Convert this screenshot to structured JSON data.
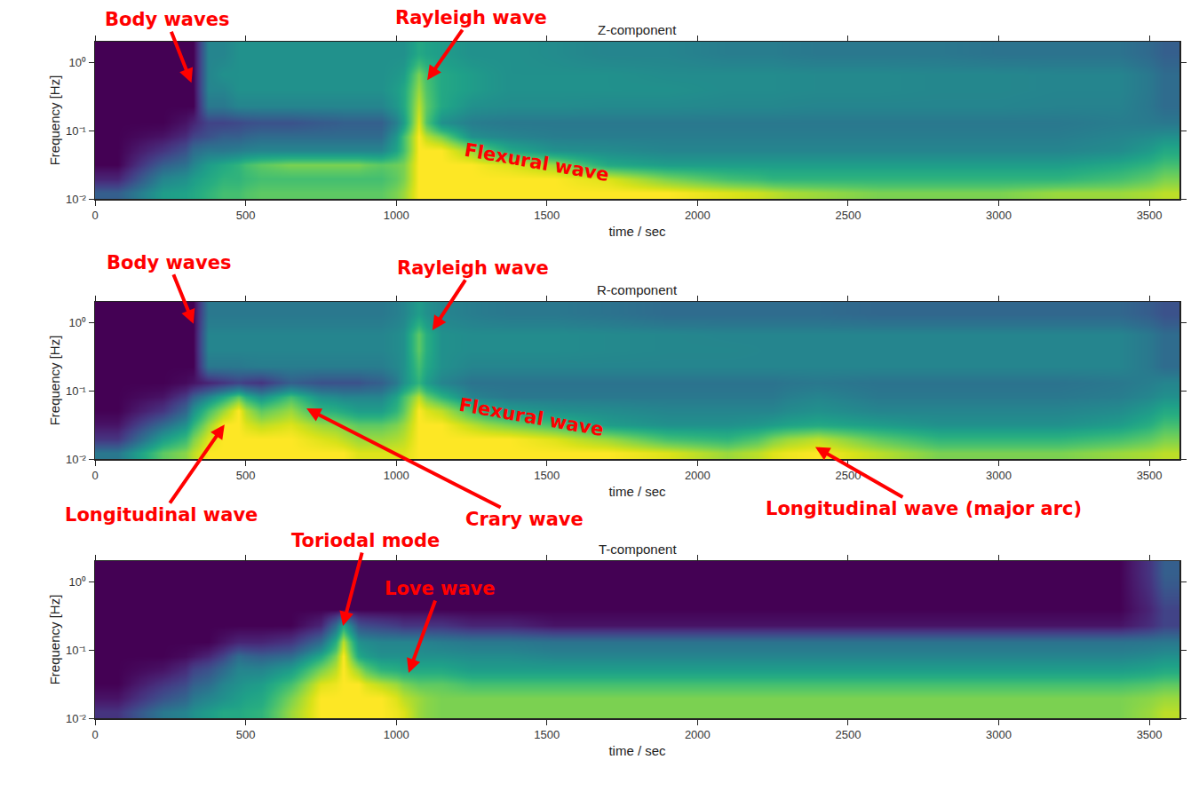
{
  "chart_data": [
    {
      "type": "heatmap",
      "title": "Z-component",
      "x_label": "time / sec",
      "y_label": "Frequency [Hz]",
      "color": "Viridis",
      "log": "y",
      "zlim": [
        0,
        1
      ],
      "xlim": [
        0,
        3600
      ],
      "xticks": [
        0,
        500,
        1000,
        1500,
        2000,
        2500,
        3000,
        3500
      ],
      "ylim": [
        0.01,
        2
      ],
      "yticks": [
        {
          "value": 0.01,
          "label": "10⁻²"
        },
        {
          "value": 0.1,
          "label": "10⁻¹"
        },
        {
          "value": 1,
          "label": "10⁰"
        }
      ],
      "x_edges": [
        0,
        150,
        300,
        350,
        400,
        450,
        500,
        600,
        700,
        800,
        850,
        900,
        1000,
        1050,
        1100,
        1200,
        1300,
        1450,
        1600,
        1800,
        2000,
        2200,
        2300,
        2500,
        2700,
        2900,
        3100,
        3300,
        3500,
        3600
      ],
      "y_edges": [
        0.01,
        0.015,
        0.025,
        0.04,
        0.065,
        0.1,
        0.17,
        0.3,
        0.5,
        0.9,
        2
      ],
      "z": [
        [
          0.3,
          0.55,
          0.6,
          0.65,
          0.7,
          0.7,
          0.75,
          0.75,
          0.75,
          0.75,
          0.75,
          0.75,
          0.85,
          1,
          1,
          1,
          1,
          1,
          1,
          1,
          0.95,
          0.9,
          0.85,
          0.8,
          0.8,
          0.8,
          0.85,
          0.85,
          0.9
        ],
        [
          0.1,
          0.45,
          0.55,
          0.6,
          0.65,
          0.65,
          0.7,
          0.7,
          0.7,
          0.7,
          0.7,
          0.7,
          0.8,
          1,
          1,
          1,
          1,
          1,
          0.95,
          0.8,
          0.7,
          0.65,
          0.65,
          0.65,
          0.65,
          0.65,
          0.65,
          0.7,
          0.8
        ],
        [
          0,
          0.3,
          0.45,
          0.55,
          0.6,
          0.65,
          0.75,
          0.8,
          0.8,
          0.8,
          0.8,
          0.75,
          0.8,
          1,
          1,
          1,
          0.95,
          0.85,
          0.6,
          0.55,
          0.55,
          0.55,
          0.55,
          0.55,
          0.55,
          0.55,
          0.55,
          0.6,
          0.7
        ],
        [
          0,
          0.15,
          0.35,
          0.4,
          0.4,
          0.42,
          0.45,
          0.45,
          0.45,
          0.45,
          0.45,
          0.45,
          0.7,
          1,
          1,
          0.85,
          0.6,
          0.5,
          0.48,
          0.45,
          0.45,
          0.45,
          0.45,
          0.45,
          0.45,
          0.45,
          0.45,
          0.48,
          0.6
        ],
        [
          0,
          0.05,
          0.2,
          0.25,
          0.3,
          0.3,
          0.35,
          0.35,
          0.35,
          0.35,
          0.35,
          0.35,
          0.7,
          1,
          0.8,
          0.5,
          0.45,
          0.42,
          0.42,
          0.42,
          0.42,
          0.42,
          0.42,
          0.42,
          0.42,
          0.42,
          0.42,
          0.45,
          0.5
        ],
        [
          0,
          0,
          0.1,
          0.2,
          0.2,
          0.22,
          0.25,
          0.25,
          0.28,
          0.3,
          0.3,
          0.3,
          0.55,
          0.95,
          0.5,
          0.42,
          0.4,
          0.4,
          0.4,
          0.4,
          0.4,
          0.4,
          0.4,
          0.4,
          0.4,
          0.4,
          0.4,
          0.42,
          0.4
        ],
        [
          0,
          0,
          0,
          0.4,
          0.4,
          0.45,
          0.45,
          0.45,
          0.45,
          0.45,
          0.45,
          0.45,
          0.6,
          0.9,
          0.6,
          0.5,
          0.48,
          0.48,
          0.47,
          0.47,
          0.46,
          0.46,
          0.45,
          0.45,
          0.45,
          0.45,
          0.44,
          0.44,
          0.35
        ],
        [
          0,
          0,
          0,
          0.45,
          0.45,
          0.5,
          0.5,
          0.5,
          0.5,
          0.5,
          0.5,
          0.5,
          0.6,
          0.85,
          0.6,
          0.55,
          0.5,
          0.5,
          0.5,
          0.5,
          0.48,
          0.48,
          0.47,
          0.47,
          0.46,
          0.46,
          0.45,
          0.45,
          0.35
        ],
        [
          0,
          0,
          0,
          0.45,
          0.5,
          0.5,
          0.5,
          0.5,
          0.5,
          0.5,
          0.5,
          0.5,
          0.55,
          0.8,
          0.6,
          0.55,
          0.5,
          0.5,
          0.5,
          0.48,
          0.48,
          0.48,
          0.47,
          0.47,
          0.46,
          0.46,
          0.45,
          0.45,
          0.35
        ],
        [
          0,
          0,
          0,
          0.45,
          0.45,
          0.5,
          0.5,
          0.5,
          0.5,
          0.5,
          0.5,
          0.5,
          0.5,
          0.6,
          0.55,
          0.5,
          0.5,
          0.48,
          0.45,
          0.45,
          0.42,
          0.42,
          0.4,
          0.4,
          0.4,
          0.38,
          0.38,
          0.38,
          0.3
        ]
      ],
      "annotations": [
        {
          "text": "Body waves",
          "x": 320,
          "y": 0.5
        },
        {
          "text": "Rayleigh wave",
          "x": 1103,
          "y": 0.55
        },
        {
          "text": "Flexural wave",
          "x": 1468,
          "y": 0.034
        }
      ]
    },
    {
      "type": "heatmap",
      "title": "R-component",
      "x_label": "time / sec",
      "y_label": "Frequency [Hz]",
      "color": "Viridis",
      "log": "y",
      "zlim": [
        0,
        1
      ],
      "xlim": [
        0,
        3600
      ],
      "xticks": [
        0,
        500,
        1000,
        1500,
        2000,
        2500,
        3000,
        3500
      ],
      "ylim": [
        0.01,
        2
      ],
      "yticks": [
        {
          "value": 0.01,
          "label": "10⁻²"
        },
        {
          "value": 0.1,
          "label": "10⁻¹"
        },
        {
          "value": 1,
          "label": "10⁰"
        }
      ],
      "x_edges": [
        0,
        150,
        300,
        350,
        400,
        450,
        500,
        600,
        700,
        800,
        850,
        900,
        1000,
        1050,
        1100,
        1200,
        1300,
        1450,
        1600,
        1800,
        2000,
        2200,
        2300,
        2500,
        2700,
        2900,
        3100,
        3300,
        3500,
        3600
      ],
      "y_edges": [
        0.01,
        0.015,
        0.025,
        0.04,
        0.065,
        0.1,
        0.17,
        0.3,
        0.5,
        0.9,
        2
      ],
      "z": [
        [
          0.4,
          0.75,
          0.9,
          1,
          1,
          1,
          1,
          1,
          1,
          1,
          0.95,
          0.95,
          0.95,
          1,
          1,
          1,
          1,
          1,
          1,
          0.95,
          0.85,
          0.95,
          1,
          0.9,
          0.8,
          0.8,
          0.8,
          0.85,
          0.9
        ],
        [
          0.15,
          0.55,
          0.8,
          0.95,
          1,
          1,
          1,
          1,
          0.95,
          0.9,
          0.85,
          0.85,
          0.9,
          1,
          1,
          1,
          1,
          0.95,
          0.85,
          0.7,
          0.65,
          0.8,
          0.9,
          0.75,
          0.65,
          0.65,
          0.65,
          0.7,
          0.8
        ],
        [
          0.05,
          0.35,
          0.65,
          0.85,
          1,
          1,
          0.9,
          0.95,
          0.85,
          0.8,
          0.75,
          0.75,
          0.85,
          1,
          1,
          0.9,
          0.8,
          0.7,
          0.55,
          0.5,
          0.5,
          0.55,
          0.6,
          0.55,
          0.5,
          0.5,
          0.5,
          0.55,
          0.7
        ],
        [
          0,
          0.15,
          0.5,
          0.7,
          0.85,
          1,
          0.75,
          0.85,
          0.65,
          0.6,
          0.55,
          0.55,
          0.75,
          1,
          0.9,
          0.7,
          0.55,
          0.5,
          0.48,
          0.45,
          0.45,
          0.45,
          0.5,
          0.45,
          0.45,
          0.45,
          0.45,
          0.48,
          0.6
        ],
        [
          0,
          0.05,
          0.3,
          0.45,
          0.6,
          0.75,
          0.5,
          0.7,
          0.5,
          0.45,
          0.45,
          0.45,
          0.7,
          0.9,
          0.65,
          0.45,
          0.4,
          0.4,
          0.4,
          0.4,
          0.4,
          0.4,
          0.45,
          0.4,
          0.4,
          0.4,
          0.4,
          0.42,
          0.5
        ],
        [
          0,
          0,
          0.05,
          0.1,
          0.15,
          0.2,
          0.15,
          0.3,
          0.25,
          0.25,
          0.25,
          0.3,
          0.5,
          0.65,
          0.45,
          0.38,
          0.38,
          0.38,
          0.38,
          0.38,
          0.38,
          0.38,
          0.4,
          0.38,
          0.38,
          0.38,
          0.38,
          0.4,
          0.45
        ],
        [
          0,
          0,
          0,
          0.4,
          0.4,
          0.4,
          0.42,
          0.42,
          0.42,
          0.42,
          0.42,
          0.42,
          0.5,
          0.7,
          0.5,
          0.45,
          0.45,
          0.45,
          0.45,
          0.45,
          0.45,
          0.45,
          0.45,
          0.45,
          0.45,
          0.45,
          0.45,
          0.45,
          0.35
        ],
        [
          0,
          0,
          0,
          0.45,
          0.45,
          0.45,
          0.45,
          0.45,
          0.45,
          0.45,
          0.45,
          0.45,
          0.5,
          0.75,
          0.5,
          0.48,
          0.48,
          0.48,
          0.47,
          0.46,
          0.46,
          0.45,
          0.45,
          0.45,
          0.45,
          0.45,
          0.45,
          0.45,
          0.35
        ],
        [
          0,
          0,
          0,
          0.45,
          0.45,
          0.45,
          0.45,
          0.45,
          0.45,
          0.45,
          0.45,
          0.45,
          0.5,
          0.75,
          0.5,
          0.48,
          0.48,
          0.48,
          0.47,
          0.46,
          0.45,
          0.45,
          0.45,
          0.45,
          0.45,
          0.45,
          0.45,
          0.45,
          0.35
        ],
        [
          0,
          0,
          0,
          0.4,
          0.4,
          0.4,
          0.4,
          0.4,
          0.4,
          0.4,
          0.4,
          0.4,
          0.45,
          0.55,
          0.45,
          0.42,
          0.4,
          0.4,
          0.38,
          0.35,
          0.35,
          0.35,
          0.35,
          0.33,
          0.33,
          0.33,
          0.33,
          0.33,
          0.25
        ]
      ],
      "annotations": [
        {
          "text": "Body waves",
          "x": 327,
          "y": 0.95
        },
        {
          "text": "Rayleigh wave",
          "x": 1120,
          "y": 0.77
        },
        {
          "text": "Flexural wave",
          "x": 1449,
          "y": 0.041
        },
        {
          "text": "Longitudinal wave",
          "x": 430,
          "y": 0.032
        },
        {
          "text": "Crary wave",
          "x": 702,
          "y": 0.055
        },
        {
          "text": "Longitudinal wave (major arc)",
          "x": 2391,
          "y": 0.015
        }
      ]
    },
    {
      "type": "heatmap",
      "title": "T-component",
      "x_label": "time / sec",
      "y_label": "Frequency [Hz]",
      "color": "Viridis",
      "log": "y",
      "zlim": [
        0,
        1
      ],
      "xlim": [
        0,
        3600
      ],
      "xticks": [
        0,
        500,
        1000,
        1500,
        2000,
        2500,
        3000,
        3500
      ],
      "ylim": [
        0.01,
        2
      ],
      "yticks": [
        {
          "value": 0.01,
          "label": "10⁻²"
        },
        {
          "value": 0.1,
          "label": "10⁻¹"
        },
        {
          "value": 1,
          "label": "10⁰"
        }
      ],
      "x_edges": [
        0,
        150,
        300,
        350,
        400,
        450,
        500,
        600,
        700,
        800,
        850,
        900,
        1000,
        1050,
        1100,
        1200,
        1300,
        1450,
        1600,
        1800,
        2000,
        2200,
        2300,
        2500,
        2700,
        2900,
        3100,
        3300,
        3500,
        3600
      ],
      "y_edges": [
        0.01,
        0.015,
        0.025,
        0.04,
        0.065,
        0.1,
        0.17,
        0.3,
        0.5,
        0.9,
        2
      ],
      "z": [
        [
          0.15,
          0.4,
          0.5,
          0.55,
          0.6,
          0.6,
          0.65,
          0.85,
          1,
          1,
          1,
          1,
          0.95,
          0.85,
          0.8,
          0.8,
          0.8,
          0.8,
          0.8,
          0.8,
          0.8,
          0.8,
          0.8,
          0.8,
          0.8,
          0.8,
          0.8,
          0.8,
          0.9
        ],
        [
          0.05,
          0.25,
          0.4,
          0.45,
          0.5,
          0.55,
          0.6,
          0.8,
          1,
          1,
          1,
          1,
          0.9,
          0.85,
          0.8,
          0.8,
          0.8,
          0.8,
          0.8,
          0.8,
          0.8,
          0.8,
          0.8,
          0.8,
          0.8,
          0.8,
          0.8,
          0.8,
          0.85
        ],
        [
          0,
          0.15,
          0.3,
          0.35,
          0.45,
          0.5,
          0.55,
          0.7,
          0.95,
          1,
          1,
          0.9,
          0.8,
          0.75,
          0.75,
          0.7,
          0.7,
          0.7,
          0.7,
          0.7,
          0.7,
          0.7,
          0.7,
          0.7,
          0.7,
          0.7,
          0.7,
          0.7,
          0.75
        ],
        [
          0,
          0.05,
          0.2,
          0.25,
          0.35,
          0.45,
          0.45,
          0.55,
          0.8,
          1,
          0.85,
          0.65,
          0.6,
          0.6,
          0.6,
          0.55,
          0.55,
          0.55,
          0.55,
          0.55,
          0.55,
          0.55,
          0.55,
          0.55,
          0.55,
          0.55,
          0.55,
          0.55,
          0.6
        ],
        [
          0,
          0,
          0.05,
          0.1,
          0.2,
          0.35,
          0.3,
          0.35,
          0.6,
          1,
          0.6,
          0.5,
          0.5,
          0.5,
          0.5,
          0.48,
          0.48,
          0.45,
          0.45,
          0.45,
          0.45,
          0.45,
          0.45,
          0.45,
          0.45,
          0.45,
          0.45,
          0.45,
          0.5
        ],
        [
          0,
          0,
          0,
          0,
          0.05,
          0.1,
          0.1,
          0.15,
          0.35,
          0.9,
          0.5,
          0.45,
          0.45,
          0.45,
          0.42,
          0.4,
          0.4,
          0.38,
          0.38,
          0.38,
          0.38,
          0.38,
          0.38,
          0.38,
          0.38,
          0.38,
          0.38,
          0.38,
          0.4
        ],
        [
          0,
          0,
          0,
          0,
          0,
          0,
          0,
          0,
          0.1,
          0.6,
          0.25,
          0.2,
          0.15,
          0.15,
          0.15,
          0.1,
          0.1,
          0.05,
          0.05,
          0.05,
          0.05,
          0.05,
          0.05,
          0.05,
          0.05,
          0.05,
          0.05,
          0.05,
          0.2
        ],
        [
          0,
          0,
          0,
          0,
          0,
          0,
          0,
          0,
          0,
          0,
          0,
          0,
          0,
          0,
          0,
          0,
          0,
          0,
          0,
          0,
          0,
          0,
          0,
          0,
          0,
          0,
          0,
          0,
          0.2
        ],
        [
          0,
          0,
          0,
          0,
          0,
          0,
          0,
          0,
          0,
          0,
          0,
          0,
          0,
          0,
          0,
          0,
          0,
          0,
          0,
          0,
          0,
          0,
          0,
          0,
          0,
          0,
          0,
          0,
          0.25
        ],
        [
          0,
          0,
          0,
          0,
          0,
          0,
          0,
          0,
          0,
          0,
          0,
          0,
          0,
          0,
          0,
          0,
          0,
          0,
          0,
          0,
          0,
          0,
          0,
          0,
          0,
          0,
          0,
          0,
          0.3
        ]
      ],
      "annotations": [
        {
          "text": "Toriodal mode",
          "x": 823,
          "y": 0.225
        },
        {
          "text": "Love wave",
          "x": 1041,
          "y": 0.046
        }
      ]
    }
  ]
}
